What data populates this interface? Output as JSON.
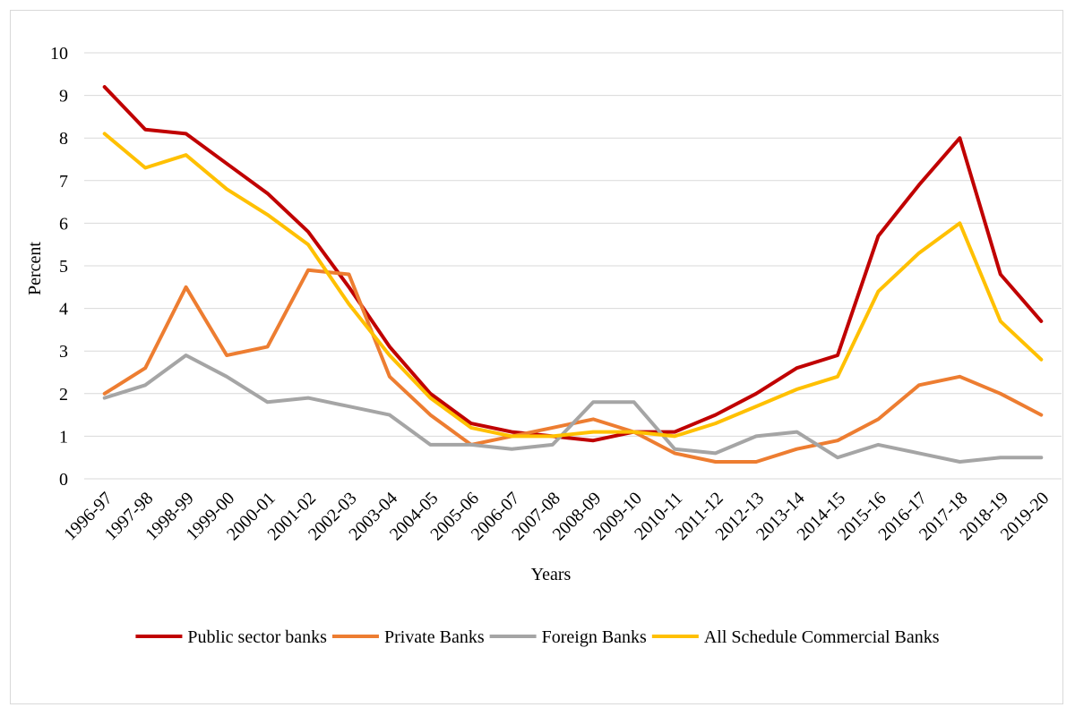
{
  "chart_data": {
    "type": "line",
    "title": "",
    "xlabel": "Years",
    "ylabel": "Percent",
    "ylim": [
      0,
      10
    ],
    "yticks": [
      0,
      1,
      2,
      3,
      4,
      5,
      6,
      7,
      8,
      9,
      10
    ],
    "grid": true,
    "legend_position": "bottom",
    "categories": [
      "1996-97",
      "1997-98",
      "1998-99",
      "1999-00",
      "2000-01",
      "2001-02",
      "2002-03",
      "2003-04",
      "2004-05",
      "2005-06",
      "2006-07",
      "2007-08",
      "2008-09",
      "2009-10",
      "2010-11",
      "2011-12",
      "2012-13",
      "2013-14",
      "2014-15",
      "2015-16",
      "2016-17",
      "2017-18",
      "2018-19",
      "2019-20"
    ],
    "series": [
      {
        "name": "Public sector banks",
        "color": "#C00000",
        "values": [
          9.2,
          8.2,
          8.1,
          7.4,
          6.7,
          5.8,
          4.5,
          3.1,
          2.0,
          1.3,
          1.1,
          1.0,
          0.9,
          1.1,
          1.1,
          1.5,
          2.0,
          2.6,
          2.9,
          5.7,
          6.9,
          8.0,
          4.8,
          3.7
        ]
      },
      {
        "name": "Private Banks",
        "color": "#ED7D31",
        "values": [
          2.0,
          2.6,
          4.5,
          2.9,
          3.1,
          4.9,
          4.8,
          2.4,
          1.5,
          0.8,
          1.0,
          1.2,
          1.4,
          1.1,
          0.6,
          0.4,
          0.4,
          0.7,
          0.9,
          1.4,
          2.2,
          2.4,
          2.0,
          1.5
        ]
      },
      {
        "name": "Foreign Banks",
        "color": "#A5A5A5",
        "values": [
          1.9,
          2.2,
          2.9,
          2.4,
          1.8,
          1.9,
          1.7,
          1.5,
          0.8,
          0.8,
          0.7,
          0.8,
          1.8,
          1.8,
          0.7,
          0.6,
          1.0,
          1.1,
          0.5,
          0.8,
          0.6,
          0.4,
          0.5,
          0.5
        ]
      },
      {
        "name": "All Schedule Commercial Banks",
        "color": "#FFC000",
        "values": [
          8.1,
          7.3,
          7.6,
          6.8,
          6.2,
          5.5,
          4.1,
          2.9,
          1.9,
          1.2,
          1.0,
          1.0,
          1.1,
          1.1,
          1.0,
          1.3,
          1.7,
          2.1,
          2.4,
          4.4,
          5.3,
          6.0,
          3.7,
          2.8
        ]
      }
    ]
  }
}
